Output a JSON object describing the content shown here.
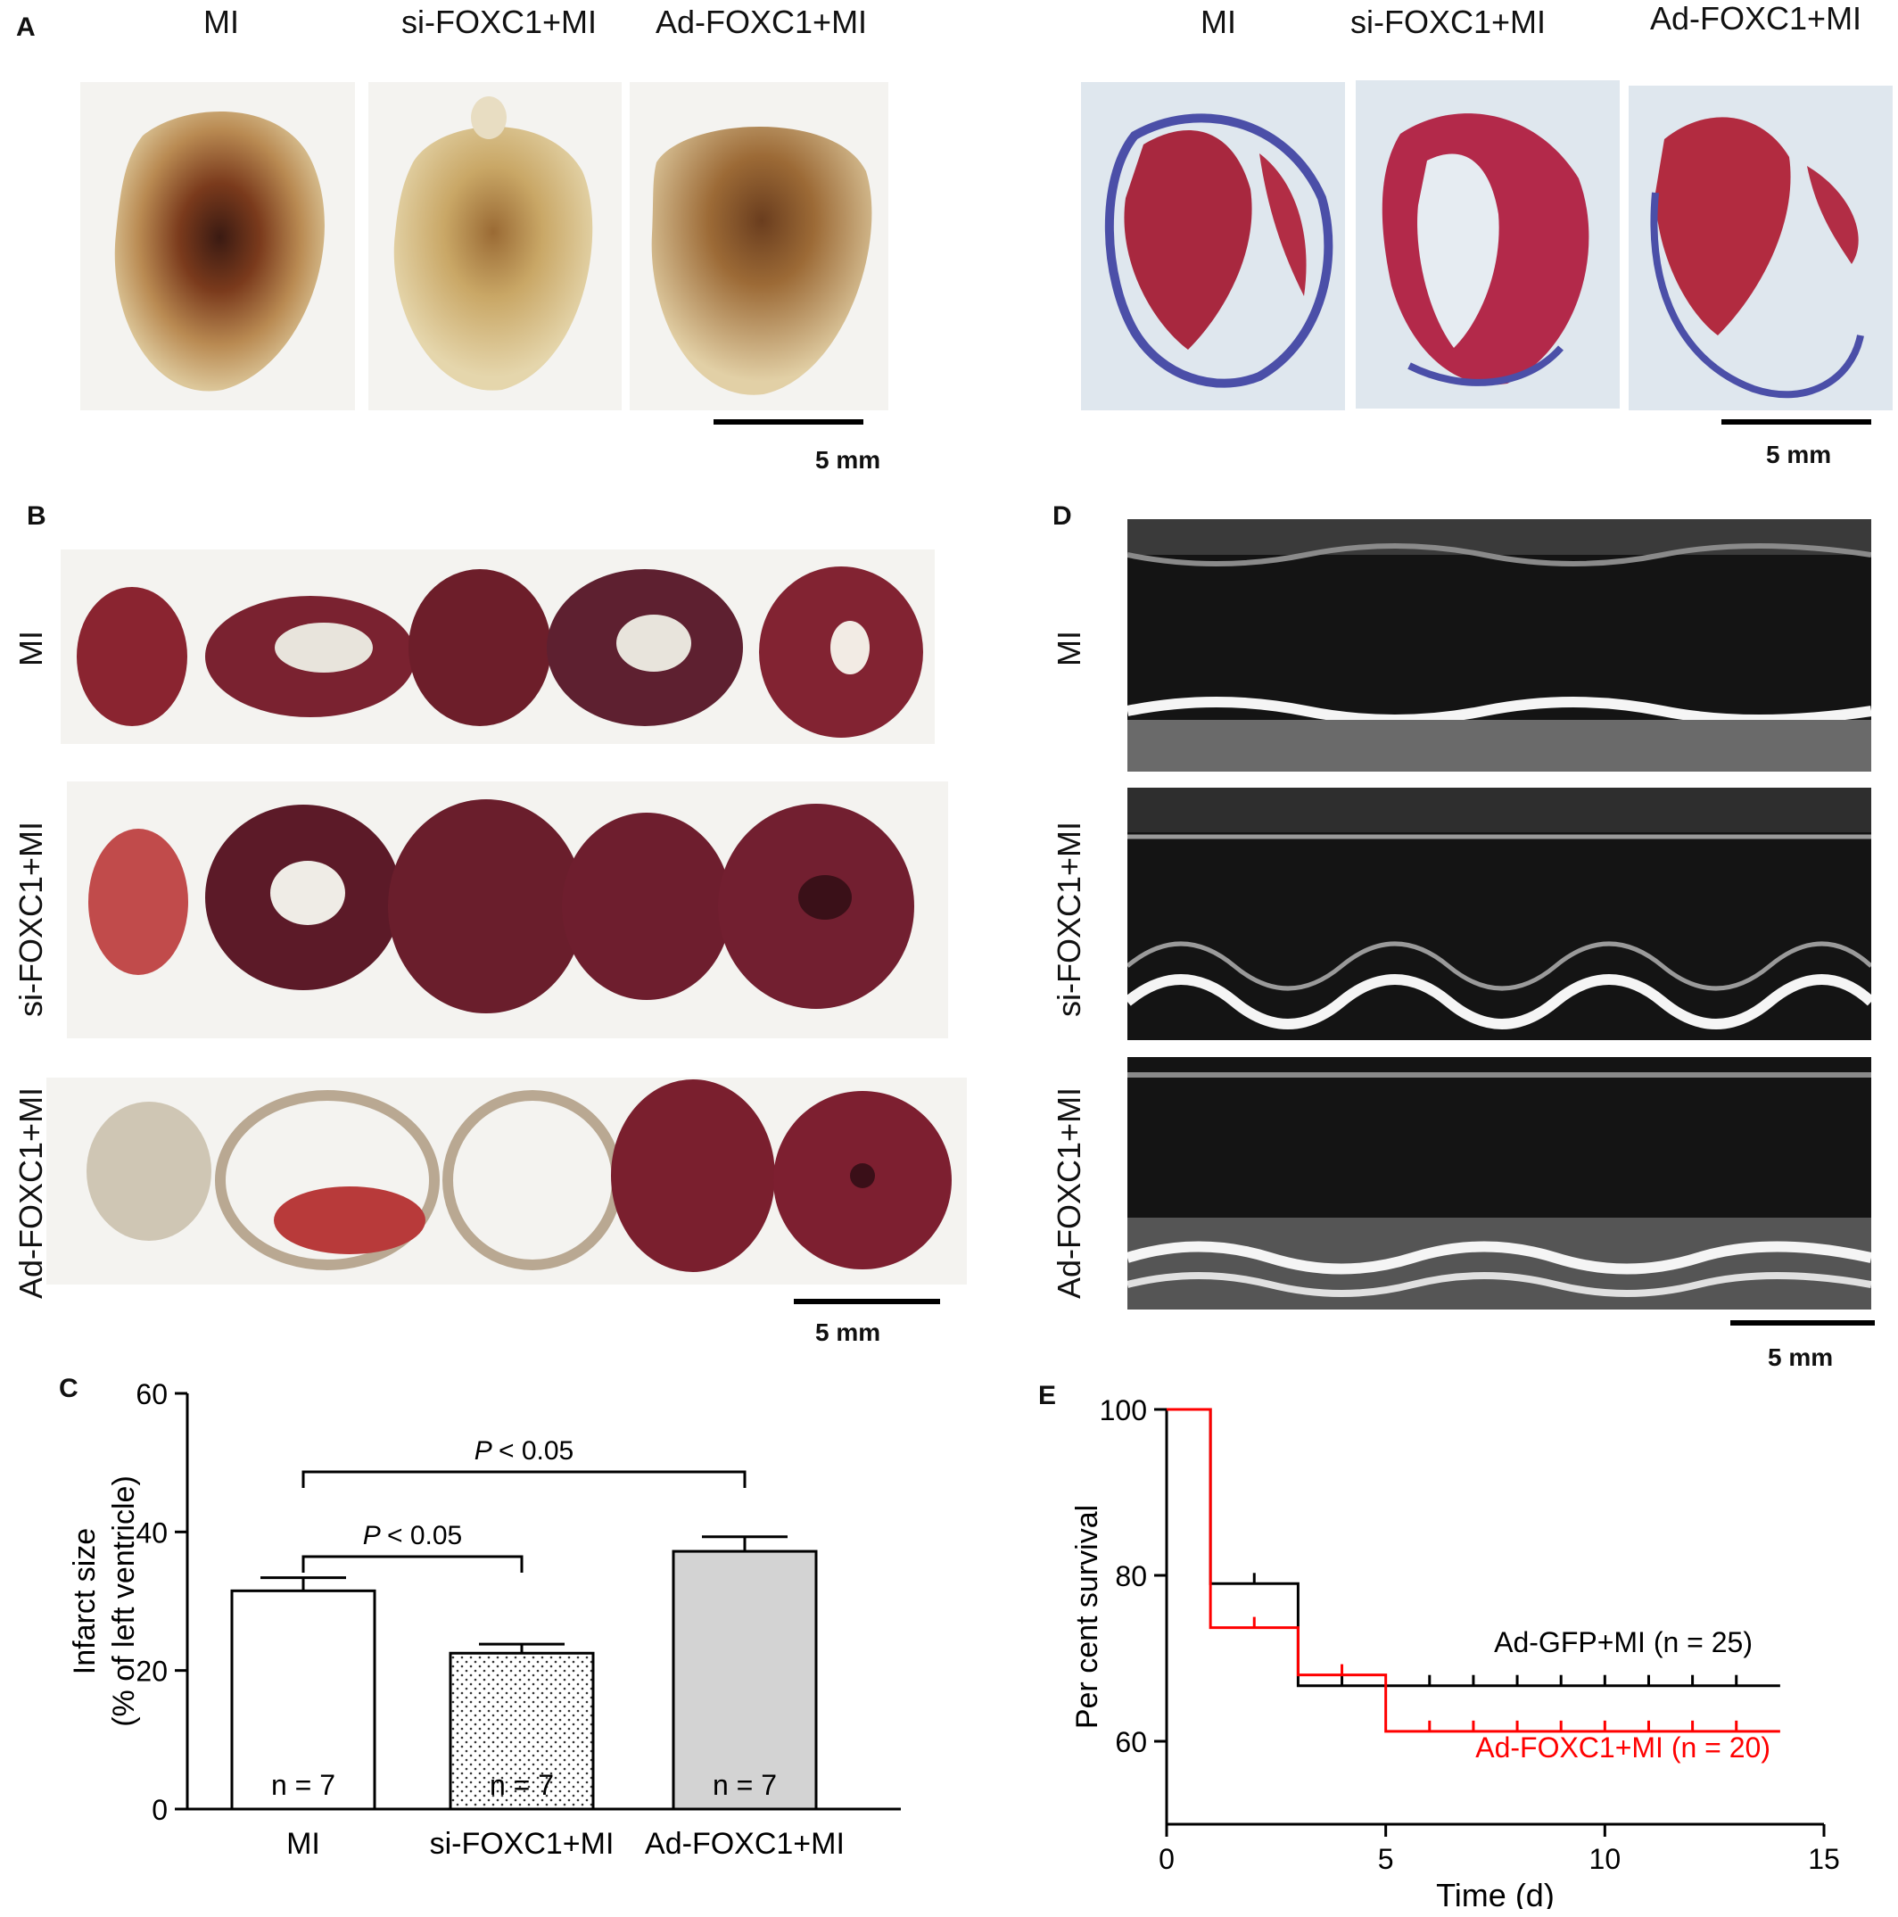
{
  "panel_a": {
    "label": "A",
    "gross_groups": [
      "MI",
      "si-FOXC1+MI",
      "Ad-FOXC1+MI"
    ],
    "stain_groups": [
      "MI",
      "si-FOXC1+MI",
      "Ad-FOXC1+MI"
    ],
    "scale_left": "5 mm",
    "scale_right": "5 mm"
  },
  "panel_b": {
    "label": "B",
    "rows": [
      "MI",
      "si-FOXC1+MI",
      "Ad-FOXC1+MI"
    ],
    "scale": "5 mm"
  },
  "panel_d": {
    "label": "D",
    "rows": [
      "MI",
      "si-FOXC1+MI",
      "Ad-FOXC1+MI"
    ],
    "scale": "5 mm"
  },
  "panel_c": {
    "label": "C",
    "sig1": "< 0.05",
    "sig2": "< 0.05",
    "sig_symbol": "P"
  },
  "panel_e": {
    "label": "E",
    "label_gfp": "Ad-GFP+MI (n = 25)",
    "label_foxc1": "Ad-FOXC1+MI (n = 20)"
  },
  "chart_data": [
    {
      "type": "bar",
      "categories": [
        "MI",
        "si-FOXC1+MI",
        "Ad-FOXC1+MI"
      ],
      "values": [
        31.5,
        22.5,
        37.2
      ],
      "errors": [
        1.9,
        1.3,
        2.1
      ],
      "n_labels": [
        "n = 7",
        "n = 7",
        "n = 7"
      ],
      "xlabel": "",
      "ylabel_line1": "Infarct size",
      "ylabel_line2": "(% of left ventricle)",
      "ylim": [
        0,
        60
      ],
      "yticks": [
        0,
        20,
        40,
        60
      ],
      "fills": [
        "#ffffff",
        "dotted",
        "#d3d3d3"
      ]
    },
    {
      "type": "line",
      "xlabel": "Time (d)",
      "ylabel": "Per cent survival",
      "xlim": [
        0,
        15
      ],
      "ylim": [
        50,
        100
      ],
      "xticks": [
        0,
        5,
        10,
        15
      ],
      "yticks": [
        60,
        80,
        100
      ],
      "series": [
        {
          "name": "Ad-GFP+MI (n = 25)",
          "color": "#000000",
          "steps": [
            [
              0,
              100
            ],
            [
              1,
              79
            ],
            [
              3,
              66.7
            ],
            [
              14,
              66.7
            ]
          ],
          "censors": [
            2,
            4,
            6,
            7,
            8,
            9,
            10,
            11,
            12,
            13
          ]
        },
        {
          "name": "Ad-FOXC1+MI (n = 20)",
          "color": "#ff0000",
          "steps": [
            [
              0,
              100
            ],
            [
              1,
              73.7
            ],
            [
              3,
              68
            ],
            [
              5,
              61.2
            ],
            [
              14,
              61.2
            ]
          ],
          "censors": [
            2,
            4,
            6,
            7,
            8,
            9,
            10,
            11,
            12,
            13
          ]
        }
      ]
    }
  ]
}
